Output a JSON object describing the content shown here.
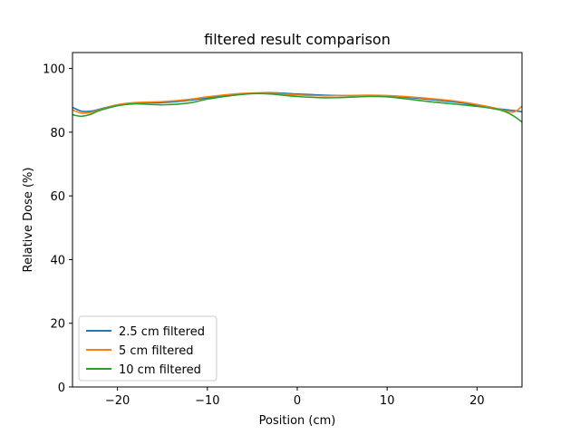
{
  "chart_data": {
    "type": "line",
    "title": "filtered result comparison",
    "xlabel": "Position (cm)",
    "ylabel": "Relative Dose (%)",
    "xlim": [
      -25,
      25
    ],
    "ylim": [
      0,
      105
    ],
    "xticks": [
      -20,
      -10,
      0,
      10,
      20
    ],
    "yticks": [
      0,
      20,
      40,
      60,
      80,
      100
    ],
    "xtick_labels": [
      "−20",
      "−10",
      "0",
      "10",
      "20"
    ],
    "ytick_labels": [
      "0",
      "20",
      "40",
      "60",
      "80",
      "100"
    ],
    "grid": false,
    "legend_position": "lower-left",
    "series": [
      {
        "name": "2.5 cm filtered",
        "color": "#1f77b4",
        "x": [
          -25,
          -24,
          -23,
          -22,
          -20,
          -18,
          -15,
          -12,
          -10,
          -7,
          -5,
          -3,
          0,
          3,
          5,
          8,
          10,
          12,
          15,
          18,
          20,
          22,
          24,
          25
        ],
        "y": [
          87.8,
          86.6,
          86.6,
          87.2,
          88.6,
          89.2,
          89.3,
          90.0,
          90.8,
          91.8,
          92.2,
          92.4,
          92.0,
          91.6,
          91.5,
          91.5,
          91.4,
          91.0,
          90.2,
          89.3,
          88.4,
          87.5,
          86.8,
          86.4
        ]
      },
      {
        "name": "5 cm filtered",
        "color": "#ff7f0e",
        "x": [
          -25,
          -24,
          -23,
          -22,
          -20,
          -18,
          -15,
          -12,
          -10,
          -7,
          -5,
          -3,
          0,
          3,
          5,
          8,
          10,
          12,
          15,
          18,
          20,
          22,
          24,
          25
        ],
        "y": [
          87.0,
          86.0,
          86.2,
          87.0,
          88.6,
          89.3,
          89.6,
          90.3,
          91.1,
          92.0,
          92.3,
          92.2,
          91.7,
          91.4,
          91.5,
          91.6,
          91.5,
          91.2,
          90.5,
          89.6,
          88.7,
          87.6,
          86.3,
          88.2
        ]
      },
      {
        "name": "10 cm filtered",
        "color": "#2ca02c",
        "x": [
          -25,
          -24,
          -23,
          -22,
          -20,
          -18,
          -15,
          -12,
          -10,
          -7,
          -5,
          -3,
          0,
          3,
          5,
          8,
          10,
          12,
          15,
          18,
          20,
          22,
          23,
          24,
          25
        ],
        "y": [
          85.5,
          85.0,
          85.6,
          86.8,
          88.3,
          88.9,
          88.6,
          89.2,
          90.4,
          91.6,
          92.1,
          92.0,
          91.2,
          90.8,
          90.9,
          91.2,
          91.1,
          90.5,
          89.5,
          88.7,
          88.1,
          87.3,
          86.6,
          85.2,
          83.2
        ]
      }
    ]
  }
}
